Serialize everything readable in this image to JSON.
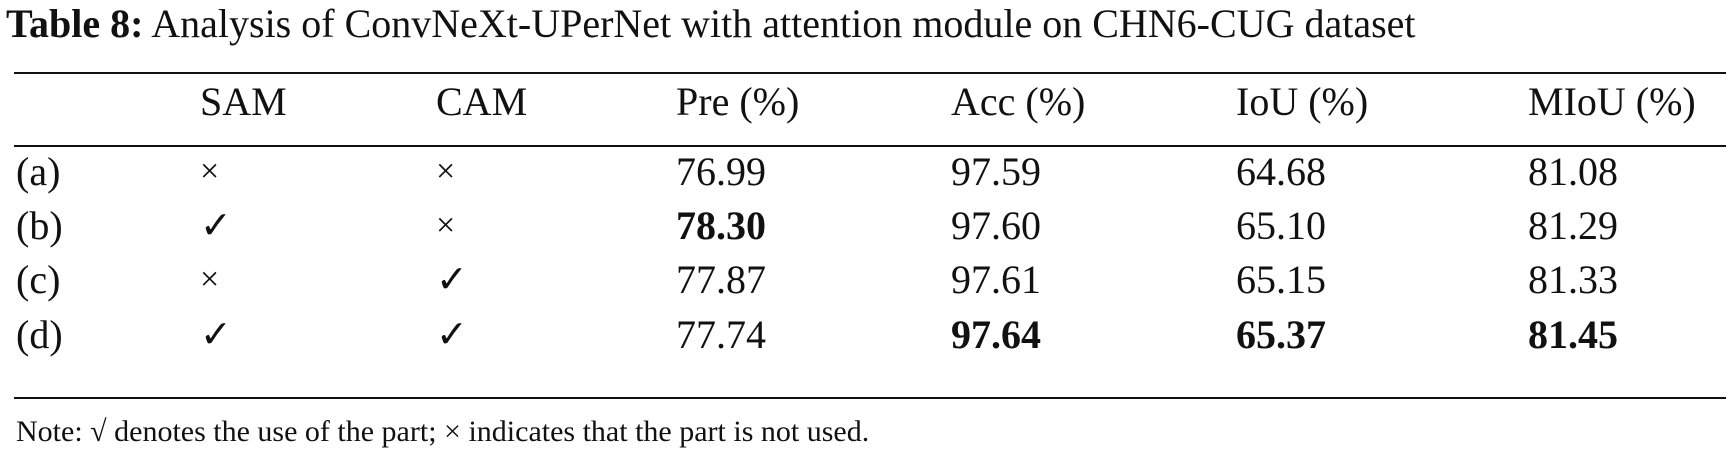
{
  "caption": {
    "label": "Table 8:",
    "text": "Analysis of ConvNeXt-UPerNet with attention module on CHN6-CUG dataset"
  },
  "table": {
    "headers": [
      "",
      "SAM",
      "CAM",
      "Pre (%)",
      "Acc (%)",
      "IoU (%)",
      "MIoU (%)"
    ],
    "rows": [
      {
        "id": "(a)",
        "sam": "×",
        "cam": "×",
        "pre": "76.99",
        "acc": "97.59",
        "iou": "64.68",
        "miou": "81.08"
      },
      {
        "id": "(b)",
        "sam": "✓",
        "cam": "×",
        "pre": "78.30",
        "acc": "97.60",
        "iou": "65.10",
        "miou": "81.29"
      },
      {
        "id": "(c)",
        "sam": "×",
        "cam": "✓",
        "pre": "77.87",
        "acc": "97.61",
        "iou": "65.15",
        "miou": "81.33"
      },
      {
        "id": "(d)",
        "sam": "✓",
        "cam": "✓",
        "pre": "77.74",
        "acc": "97.64",
        "iou": "65.37",
        "miou": "81.45"
      }
    ],
    "bold_cells": [
      "1.pre",
      "3.acc",
      "3.iou",
      "3.miou"
    ]
  },
  "note": {
    "prefix": "Note:",
    "check_symbol": "√",
    "middle": "denotes the use of the part;",
    "cross_symbol": "×",
    "suffix": "indicates that the part is not used."
  }
}
